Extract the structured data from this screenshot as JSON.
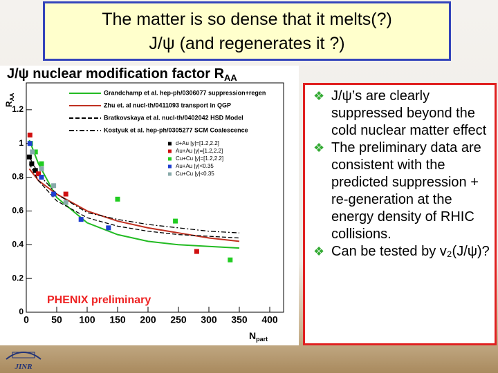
{
  "slide": {
    "title": [
      "The matter is so dense that it melts(?)",
      "J/ψ (and regenerates it ?)"
    ],
    "bullets": [
      "J/ψ’s are clearly suppressed beyond the cold nuclear matter effect",
      "The preliminary data are consistent with the predicted suppression + re-generation at the energy density of RHIC collisions.",
      "Can be tested by v₂(J/ψ)?"
    ],
    "logo": "JINR"
  },
  "chart_data": {
    "type": "scatter",
    "title": "J/ψ nuclear modification factor R",
    "title_sub": "AA",
    "xlabel": "N",
    "xlabel_sub": "part",
    "ylabel": "R",
    "ylabel_sub": "AA",
    "annotation": "PHENIX preliminary",
    "xlim": [
      0,
      400
    ],
    "xticks": [
      0,
      50,
      100,
      150,
      200,
      250,
      300,
      350,
      400
    ],
    "ylim": [
      0,
      1.4
    ],
    "yticks": [
      0,
      0.2,
      0.4,
      0.6,
      0.8,
      1,
      1.2
    ],
    "series": [
      {
        "name": "Grandchamp et al. hep-ph/0306077 suppression+regen",
        "style": "line",
        "dash": "solid",
        "color": "#22bb22",
        "x": [
          5,
          20,
          50,
          100,
          150,
          200,
          250,
          300,
          350
        ],
        "values": [
          1.02,
          0.88,
          0.68,
          0.53,
          0.46,
          0.42,
          0.4,
          0.39,
          0.38
        ]
      },
      {
        "name": "Zhu et. al nucl-th/0411093 transport in QGP",
        "style": "line",
        "dash": "solid",
        "color": "#c03020",
        "x": [
          5,
          20,
          50,
          100,
          150,
          200,
          250,
          300,
          350
        ],
        "values": [
          0.85,
          0.78,
          0.7,
          0.6,
          0.54,
          0.5,
          0.47,
          0.44,
          0.42
        ]
      },
      {
        "name": "Bratkovskaya et al. nucl-th/0402042 HSD Model",
        "style": "line",
        "dash": "dashed",
        "color": "#000000",
        "x": [
          5,
          20,
          50,
          100,
          150,
          200,
          250,
          300,
          350
        ],
        "values": [
          0.88,
          0.78,
          0.66,
          0.56,
          0.51,
          0.48,
          0.46,
          0.45,
          0.44
        ]
      },
      {
        "name": "Kostyuk et al. hep-ph/0305277 SCM Coalescence",
        "style": "line",
        "dash": "dashdot",
        "color": "#000000",
        "x": [
          5,
          20,
          50,
          100,
          150,
          200,
          250,
          300,
          350
        ],
        "values": [
          0.92,
          0.82,
          0.7,
          0.59,
          0.55,
          0.52,
          0.5,
          0.48,
          0.47
        ]
      },
      {
        "name": "d+Au |y|=[1.2,2.2]",
        "style": "marker",
        "color": "#000000",
        "x": [
          5,
          9,
          15
        ],
        "values": [
          0.92,
          0.88,
          0.84
        ]
      },
      {
        "name": "Au+Au |y|=[1.2,2.2]",
        "style": "marker",
        "color": "#d01010",
        "x": [
          6,
          20,
          65,
          280
        ],
        "values": [
          1.05,
          0.82,
          0.7,
          0.36
        ]
      },
      {
        "name": "Cu+Cu |y|=[1.2,2.2]",
        "style": "marker",
        "color": "#22cc22",
        "x": [
          7,
          15,
          25,
          150,
          245,
          335
        ],
        "values": [
          1.0,
          0.95,
          0.88,
          0.67,
          0.54,
          0.31
        ]
      },
      {
        "name": "Au+Au |y|<0.35",
        "style": "marker",
        "color": "#1f3fd0",
        "x": [
          6,
          25,
          45,
          90,
          135
        ],
        "values": [
          1.0,
          0.8,
          0.7,
          0.55,
          0.5
        ]
      },
      {
        "name": "Cu+Cu |y|<0.35",
        "style": "marker",
        "color": "#88aaaa",
        "x": [
          10,
          25,
          45,
          65
        ],
        "values": [
          0.95,
          0.85,
          0.75,
          0.65
        ]
      }
    ]
  }
}
